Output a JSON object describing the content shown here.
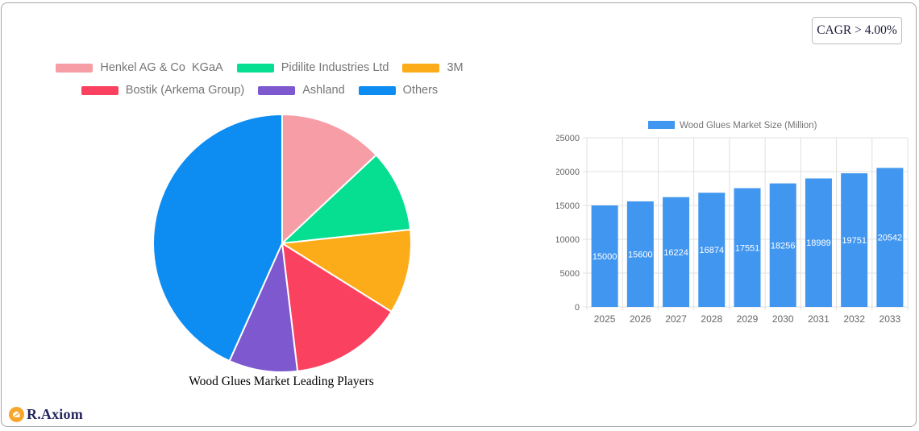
{
  "badge": {
    "text": "CAGR > 4.00%"
  },
  "brand": {
    "name": "R.Axiom",
    "icon": "chart-circle-icon",
    "icon_color": "#f6a62a"
  },
  "chart_data": [
    {
      "type": "pie",
      "title": "Wood Glues Market Leading Players",
      "labels": [
        "Henkel AG & Co  KGaA",
        "Pidilite Industries Ltd",
        "3M",
        "Bostik (Arkema Group)",
        "Ashland",
        "Others"
      ],
      "values": [
        13.0,
        10.3,
        10.6,
        14.2,
        8.6,
        43.3
      ],
      "colors": [
        "#f79da5",
        "#06de92",
        "#fcac18",
        "#fa4160",
        "#7d58ce",
        "#0d8cf2"
      ],
      "legend_position": "top",
      "start_angle_deg": 0,
      "legend_text_color": "#757575"
    },
    {
      "type": "bar",
      "legend": "Wood Glues Market Size (Million)",
      "categories": [
        "2025",
        "2026",
        "2027",
        "2028",
        "2029",
        "2030",
        "2031",
        "2032",
        "2033"
      ],
      "values": [
        15000,
        15600,
        16224,
        16874,
        17551,
        18256,
        18989,
        19751,
        20542
      ],
      "bar_color": "#4196f0",
      "ylim": [
        0,
        25000
      ],
      "yticks": [
        0,
        5000,
        10000,
        15000,
        20000,
        25000
      ],
      "grid": true,
      "grid_color": "#e0e0e0",
      "axis_text_color": "#666666",
      "value_label_color": "#ffffff",
      "value_label_position": "center"
    }
  ]
}
